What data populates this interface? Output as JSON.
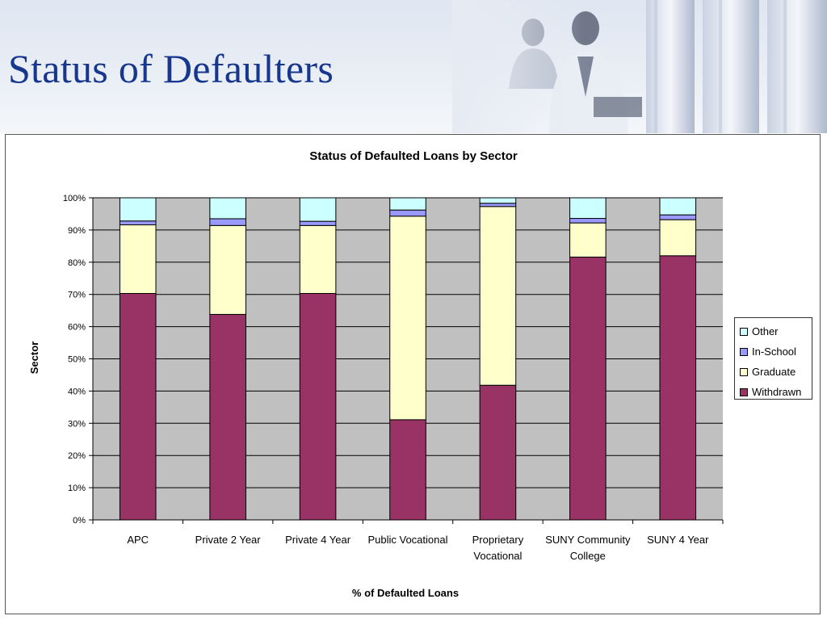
{
  "slide": {
    "title": "Status of Defaulters"
  },
  "colors": {
    "Withdrawn": "#993366",
    "Graduate": "#ffffcc",
    "In-School": "#9999ff",
    "Other": "#ccffff",
    "plot_background": "#c0c0c0",
    "title": "#17378f"
  },
  "chart_data": {
    "type": "bar",
    "stacked": true,
    "percent_stacked": true,
    "title": "Status of Defaulted Loans by Sector",
    "xlabel": "% of Defaulted Loans",
    "ylabel": "Sector",
    "ylim": [
      0,
      100
    ],
    "y_ticks": [
      "0%",
      "10%",
      "20%",
      "30%",
      "40%",
      "50%",
      "60%",
      "70%",
      "80%",
      "90%",
      "100%"
    ],
    "grid": true,
    "legend_position": "right",
    "categories": [
      "APC",
      "Private 2 Year",
      "Private 4 Year",
      "Public Vocational",
      "Proprietary Vocational",
      "SUNY Community College",
      "SUNY 4 Year"
    ],
    "series": [
      {
        "name": "Withdrawn",
        "values": [
          70.3,
          63.8,
          70.3,
          31.1,
          41.8,
          81.6,
          82.0
        ]
      },
      {
        "name": "Graduate",
        "values": [
          21.3,
          27.6,
          21.1,
          63.2,
          55.5,
          10.6,
          11.2
        ]
      },
      {
        "name": "In-School",
        "values": [
          1.2,
          2.1,
          1.3,
          1.9,
          1.0,
          1.4,
          1.5
        ]
      },
      {
        "name": "Other",
        "values": [
          7.2,
          6.5,
          7.3,
          3.8,
          1.7,
          6.4,
          5.3
        ]
      }
    ],
    "legend_order": [
      "Other",
      "In-School",
      "Graduate",
      "Withdrawn"
    ]
  }
}
